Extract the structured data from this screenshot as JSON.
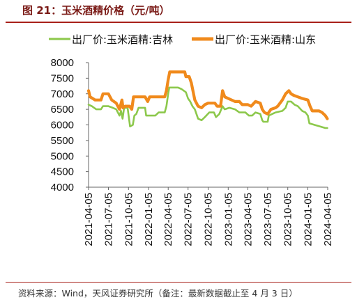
{
  "figure": {
    "title": "图 21：玉米酒精价格（元/吨）",
    "source": "资料来源：Wind，天风证券研究所（备注：最新数据截止至 4 月 3 日）"
  },
  "chart_data": {
    "type": "line",
    "title": "",
    "xlabel": "",
    "ylabel": "",
    "ylim": [
      4000,
      8000
    ],
    "yticks": [
      4000,
      4500,
      5000,
      5500,
      6000,
      6500,
      7000,
      7500,
      8000
    ],
    "xticks": [
      "2021-04-05",
      "2021-07-05",
      "2021-10-05",
      "2022-01-05",
      "2022-04-05",
      "2022-07-05",
      "2022-10-05",
      "2023-01-05",
      "2023-04-05",
      "2023-07-05",
      "2023-10-05",
      "2024-01-05",
      "2024-04-05"
    ],
    "xlim": [
      "2021-04-05",
      "2024-04-05"
    ],
    "grid": false,
    "legend_position": "top",
    "series": [
      {
        "name": "出厂价:玉米酒精:吉林",
        "color": "#8cc84b",
        "points": [
          [
            "2021-04-05",
            6650
          ],
          [
            "2021-04-20",
            6600
          ],
          [
            "2021-05-10",
            6500
          ],
          [
            "2021-06-01",
            6500
          ],
          [
            "2021-06-10",
            6600
          ],
          [
            "2021-07-05",
            6600
          ],
          [
            "2021-07-25",
            6550
          ],
          [
            "2021-08-10",
            6500
          ],
          [
            "2021-08-25",
            6300
          ],
          [
            "2021-09-01",
            6450
          ],
          [
            "2021-09-08",
            6200
          ],
          [
            "2021-09-15",
            6550
          ],
          [
            "2021-10-01",
            6550
          ],
          [
            "2021-10-12",
            5950
          ],
          [
            "2021-10-25",
            6000
          ],
          [
            "2021-11-01",
            6300
          ],
          [
            "2021-11-10",
            6350
          ],
          [
            "2021-11-20",
            6550
          ],
          [
            "2021-12-20",
            6550
          ],
          [
            "2021-12-25",
            6300
          ],
          [
            "2022-01-10",
            6300
          ],
          [
            "2022-02-05",
            6300
          ],
          [
            "2022-02-20",
            6400
          ],
          [
            "2022-03-20",
            6400
          ],
          [
            "2022-03-28",
            6600
          ],
          [
            "2022-04-05",
            7000
          ],
          [
            "2022-04-10",
            7200
          ],
          [
            "2022-05-20",
            7200
          ],
          [
            "2022-06-05",
            7150
          ],
          [
            "2022-06-25",
            7050
          ],
          [
            "2022-07-05",
            6850
          ],
          [
            "2022-07-15",
            6750
          ],
          [
            "2022-07-25",
            6600
          ],
          [
            "2022-08-05",
            6500
          ],
          [
            "2022-08-20",
            6200
          ],
          [
            "2022-09-05",
            6150
          ],
          [
            "2022-09-20",
            6250
          ],
          [
            "2022-10-10",
            6400
          ],
          [
            "2022-11-01",
            6400
          ],
          [
            "2022-11-10",
            6250
          ],
          [
            "2022-11-25",
            6350
          ],
          [
            "2022-12-10",
            6600
          ],
          [
            "2022-12-20",
            6500
          ],
          [
            "2023-01-10",
            6550
          ],
          [
            "2023-02-05",
            6500
          ],
          [
            "2023-02-25",
            6400
          ],
          [
            "2023-03-25",
            6400
          ],
          [
            "2023-04-10",
            6300
          ],
          [
            "2023-04-25",
            6300
          ],
          [
            "2023-05-10",
            6400
          ],
          [
            "2023-06-01",
            6350
          ],
          [
            "2023-06-10",
            6150
          ],
          [
            "2023-06-15",
            6100
          ],
          [
            "2023-07-05",
            6100
          ],
          [
            "2023-07-10",
            6300
          ],
          [
            "2023-08-10",
            6400
          ],
          [
            "2023-09-10",
            6450
          ],
          [
            "2023-09-25",
            6550
          ],
          [
            "2023-10-05",
            6750
          ],
          [
            "2023-10-20",
            6750
          ],
          [
            "2023-11-05",
            6650
          ],
          [
            "2023-11-20",
            6600
          ],
          [
            "2023-12-10",
            6450
          ],
          [
            "2023-12-25",
            6400
          ],
          [
            "2024-01-05",
            6300
          ],
          [
            "2024-01-12",
            6050
          ],
          [
            "2024-02-05",
            6000
          ],
          [
            "2024-03-01",
            5950
          ],
          [
            "2024-03-25",
            5900
          ],
          [
            "2024-04-03",
            5900
          ]
        ]
      },
      {
        "name": "出厂价:玉米酒精:山东",
        "color": "#f08a1c",
        "points": [
          [
            "2021-04-05",
            7100
          ],
          [
            "2021-04-12",
            6900
          ],
          [
            "2021-05-05",
            6800
          ],
          [
            "2021-06-01",
            6800
          ],
          [
            "2021-06-10",
            7000
          ],
          [
            "2021-07-05",
            7000
          ],
          [
            "2021-07-20",
            6800
          ],
          [
            "2021-08-10",
            6700
          ],
          [
            "2021-08-25",
            6500
          ],
          [
            "2021-09-05",
            6800
          ],
          [
            "2021-09-10",
            6550
          ],
          [
            "2021-09-20",
            6600
          ],
          [
            "2021-10-10",
            6600
          ],
          [
            "2021-10-20",
            6500
          ],
          [
            "2021-10-28",
            6900
          ],
          [
            "2021-12-20",
            6900
          ],
          [
            "2022-01-01",
            6750
          ],
          [
            "2022-01-10",
            6900
          ],
          [
            "2022-03-20",
            6900
          ],
          [
            "2022-03-28",
            7100
          ],
          [
            "2022-04-05",
            7450
          ],
          [
            "2022-04-12",
            7700
          ],
          [
            "2022-06-20",
            7700
          ],
          [
            "2022-06-25",
            7550
          ],
          [
            "2022-07-10",
            7550
          ],
          [
            "2022-07-20",
            7350
          ],
          [
            "2022-08-05",
            6800
          ],
          [
            "2022-08-20",
            6600
          ],
          [
            "2022-09-05",
            6550
          ],
          [
            "2022-09-20",
            6650
          ],
          [
            "2022-10-05",
            6700
          ],
          [
            "2022-11-05",
            6700
          ],
          [
            "2022-11-15",
            6600
          ],
          [
            "2022-12-01",
            6600
          ],
          [
            "2022-12-10",
            7100
          ],
          [
            "2022-12-20",
            6900
          ],
          [
            "2023-01-05",
            6850
          ],
          [
            "2023-02-05",
            6750
          ],
          [
            "2023-02-25",
            6750
          ],
          [
            "2023-03-10",
            6650
          ],
          [
            "2023-04-05",
            6650
          ],
          [
            "2023-04-20",
            6600
          ],
          [
            "2023-05-10",
            6750
          ],
          [
            "2023-06-01",
            6700
          ],
          [
            "2023-06-10",
            6500
          ],
          [
            "2023-06-20",
            6400
          ],
          [
            "2023-07-05",
            6350
          ],
          [
            "2023-07-20",
            6500
          ],
          [
            "2023-08-10",
            6550
          ],
          [
            "2023-08-20",
            6600
          ],
          [
            "2023-09-10",
            6800
          ],
          [
            "2023-09-25",
            7000
          ],
          [
            "2023-10-10",
            7100
          ],
          [
            "2023-10-20",
            7000
          ],
          [
            "2023-11-01",
            6950
          ],
          [
            "2023-11-20",
            6900
          ],
          [
            "2023-12-10",
            6850
          ],
          [
            "2024-01-05",
            6800
          ],
          [
            "2024-01-15",
            6600
          ],
          [
            "2024-01-25",
            6450
          ],
          [
            "2024-02-25",
            6450
          ],
          [
            "2024-03-10",
            6400
          ],
          [
            "2024-03-25",
            6300
          ],
          [
            "2024-04-03",
            6200
          ]
        ]
      }
    ]
  }
}
